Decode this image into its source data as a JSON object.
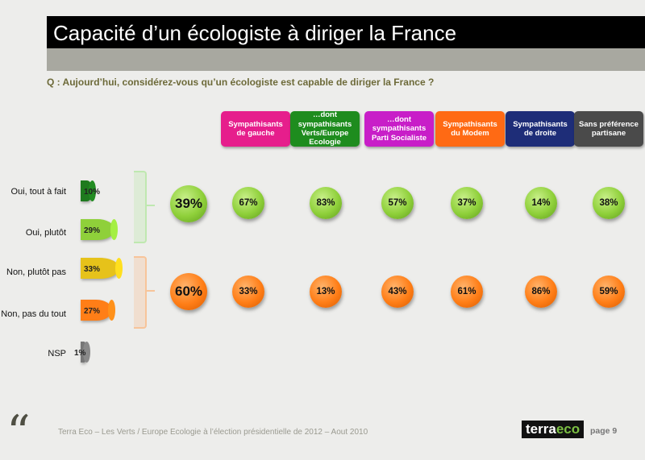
{
  "header": {
    "title": "Capacité d’un écologiste à diriger la France",
    "question": "Q : Aujourd’hui, considérez-vous qu’un écologiste est capable de diriger la France ?"
  },
  "colors": {
    "yes": "#8fd03a",
    "no": "#ff7e17",
    "bracket_yes": "#bfe8b0",
    "bracket_no": "#f7c49a"
  },
  "chart_data": [
    {
      "type": "bar",
      "orientation": "horizontal",
      "categories": [
        "Oui, tout à fait",
        "Oui, plutôt",
        "Non, plutôt pas",
        "Non, pas du tout",
        "NSP"
      ],
      "values": [
        10,
        29,
        33,
        27,
        1
      ],
      "labels": [
        "10%",
        "29%",
        "33%",
        "27%",
        "1%"
      ],
      "colors": [
        "#1e7a1e",
        "#8fd03a",
        "#e6c21a",
        "#ff7e17",
        "#777777"
      ]
    },
    {
      "type": "table",
      "totals": {
        "yes": "39%",
        "no": "60%"
      },
      "columns": [
        {
          "label": "Sympathisants de gauche",
          "color": "#e61e8c",
          "yes": "67%",
          "no": "33%"
        },
        {
          "label": "…dont sympathisants Verts/Europe Ecologie",
          "color": "#1e8c1e",
          "yes": "83%",
          "no": "13%"
        },
        {
          "label": "…dont sympathisants Parti Socialiste",
          "color": "#c81ec8",
          "yes": "57%",
          "no": "43%"
        },
        {
          "label": "Sympathisants du Modem",
          "color": "#ff6a14",
          "yes": "37%",
          "no": "61%"
        },
        {
          "label": "Sympathisants de droite",
          "color": "#1e2d78",
          "yes": "14%",
          "no": "86%"
        },
        {
          "label": "Sans préférence partisane",
          "color": "#4a4a4a",
          "yes": "38%",
          "no": "59%"
        }
      ]
    }
  ],
  "footer": {
    "quote_icon": "quote-icon",
    "text": "Terra Eco – Les Verts / Europe Ecologie à l’élection présidentielle de 2012 – Aout 2010",
    "logo_left": "terra",
    "logo_right": "eco",
    "page": "page 9"
  }
}
